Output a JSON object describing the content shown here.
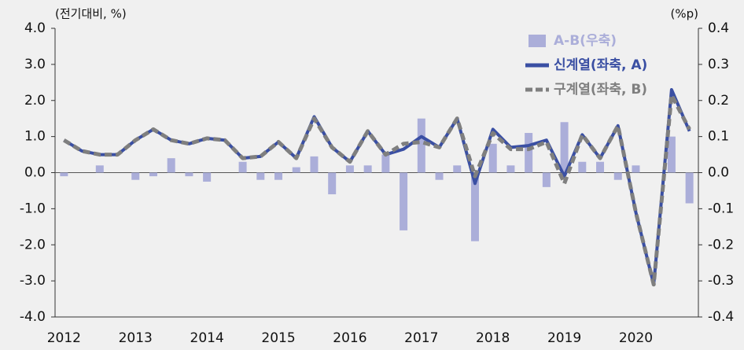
{
  "chart_data": {
    "type": "line",
    "y_label": "(전기대비, %)",
    "y2_label": "(%p)",
    "categories": [
      "2012",
      null,
      null,
      null,
      "2013",
      null,
      null,
      null,
      "2014",
      null,
      null,
      null,
      "2015",
      null,
      null,
      null,
      "2016",
      null,
      null,
      null,
      "2017",
      null,
      null,
      null,
      "2018",
      null,
      null,
      null,
      "2019",
      null,
      null,
      null,
      "2020",
      null,
      null,
      null
    ],
    "ylim": [
      -4,
      4
    ],
    "yticks": [
      {
        "value": 4,
        "label": "4.0"
      },
      {
        "value": 3,
        "label": "3.0"
      },
      {
        "value": 2,
        "label": "2.0"
      },
      {
        "value": 1,
        "label": "1.0"
      },
      {
        "value": 0,
        "label": "0.0"
      },
      {
        "value": -1,
        "label": "-1.0"
      },
      {
        "value": -2,
        "label": "-2.0"
      },
      {
        "value": -3,
        "label": "-3.0"
      },
      {
        "value": -4,
        "label": "-4.0"
      }
    ],
    "y2lim": [
      -0.4,
      0.4
    ],
    "y2ticks": [
      0.4,
      0.3,
      0.2,
      0.1,
      {
        "value": 0,
        "label": "0.0"
      },
      -0.1,
      -0.2,
      -0.3,
      -0.4
    ],
    "legend": "top-right",
    "series": [
      {
        "name": "A-B(우축)",
        "type": "bar",
        "axis": "y2",
        "color": "#abaed9",
        "values": [
          -0.01,
          0.0,
          0.02,
          0.0,
          -0.02,
          -0.01,
          0.04,
          -0.01,
          -0.025,
          0.0,
          0.03,
          -0.02,
          -0.02,
          0.015,
          0.045,
          -0.06,
          0.02,
          0.02,
          0.05,
          -0.16,
          0.15,
          -0.02,
          0.02,
          -0.19,
          0.08,
          0.02,
          0.11,
          -0.04,
          0.14,
          0.03,
          0.03,
          -0.02,
          0.02,
          0.0,
          0.1,
          -0.085
        ]
      },
      {
        "name": "신계열(좌축, A)",
        "type": "line",
        "color": "#3a4fa3",
        "dashed": false,
        "values": [
          0.9,
          0.6,
          0.5,
          0.5,
          0.9,
          1.2,
          0.9,
          0.8,
          0.95,
          0.9,
          0.4,
          0.45,
          0.85,
          0.4,
          1.55,
          0.7,
          0.3,
          1.15,
          0.5,
          0.65,
          1.0,
          0.7,
          1.5,
          -0.3,
          1.2,
          0.7,
          0.75,
          0.9,
          -0.1,
          1.05,
          0.4,
          1.3,
          -1.1,
          -3.1,
          2.3,
          1.15
        ]
      },
      {
        "name": "구계열(좌축, B)",
        "type": "line",
        "color": "#7f7f7f",
        "dashed": true,
        "values": [
          0.9,
          0.6,
          0.5,
          0.5,
          0.9,
          1.2,
          0.9,
          0.8,
          0.95,
          0.9,
          0.4,
          0.45,
          0.85,
          0.4,
          1.5,
          0.7,
          0.3,
          1.15,
          0.5,
          0.8,
          0.85,
          0.7,
          1.5,
          -0.1,
          1.1,
          0.65,
          0.65,
          0.85,
          -0.3,
          1.05,
          0.4,
          1.3,
          -1.1,
          -3.1,
          2.15,
          1.2
        ]
      }
    ]
  }
}
